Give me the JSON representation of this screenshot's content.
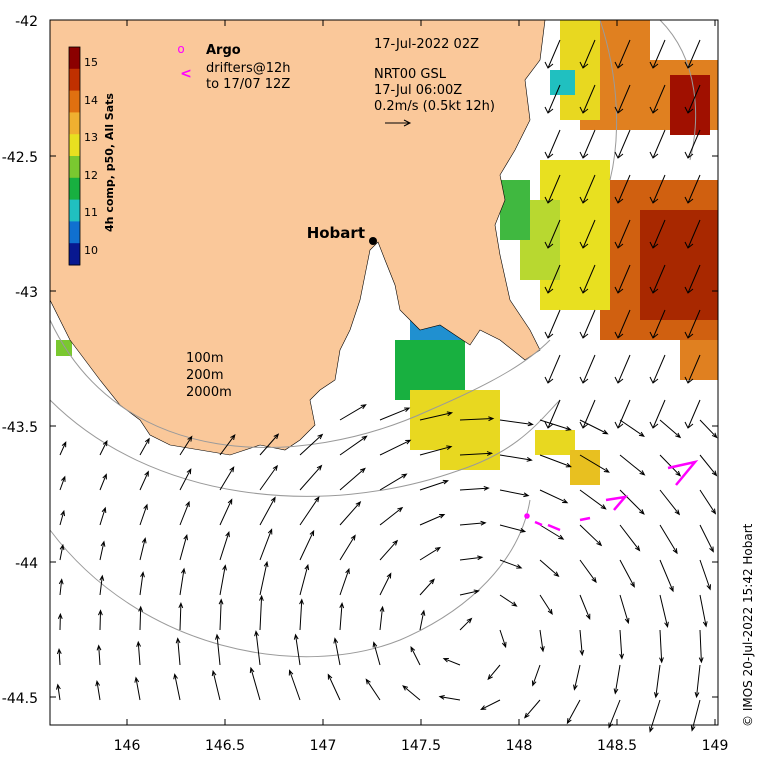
{
  "map": {
    "x_ticks": [
      "146",
      "146.5",
      "147",
      "147.5",
      "148",
      "148.5",
      "149"
    ],
    "y_ticks": [
      "-42",
      "-42.5",
      "-43",
      "-43.5",
      "-44",
      "-44.5"
    ],
    "lon_range": [
      145.6,
      149
    ],
    "lat_range": [
      -44.6,
      -42
    ]
  },
  "colorbar": {
    "label": "4h comp, p50, All Sats",
    "ticks": [
      "15",
      "14",
      "13",
      "12",
      "11",
      "10"
    ],
    "colors": [
      "#8b0000",
      "#c03000",
      "#e07010",
      "#f0b030",
      "#e8e020",
      "#7ac830",
      "#18b040",
      "#20c0c0",
      "#1070d0",
      "#081890"
    ]
  },
  "legend": {
    "argo_symbol": "o",
    "argo_label": "Argo",
    "drifters_symbol": "<",
    "drifters_line1": "drifters@12h",
    "drifters_line2": "to 17/07 12Z"
  },
  "header": {
    "date": "17-Jul-2022 02Z",
    "product": "NRT00 GSL",
    "time": "17-Jul 06:00Z",
    "scale": "0.2m/s (0.5kt 12h)"
  },
  "city": {
    "name": "Hobart"
  },
  "contours": {
    "c100": "100m",
    "c200": "200m",
    "c2000": "2000m"
  },
  "credit": "© IMOS 20-Jul-2022 15:42 Hobart",
  "colors": {
    "land": "#fac89a",
    "arrow": "#000000",
    "drifter": "#ff00ff",
    "contour": "#9a9a9a"
  }
}
